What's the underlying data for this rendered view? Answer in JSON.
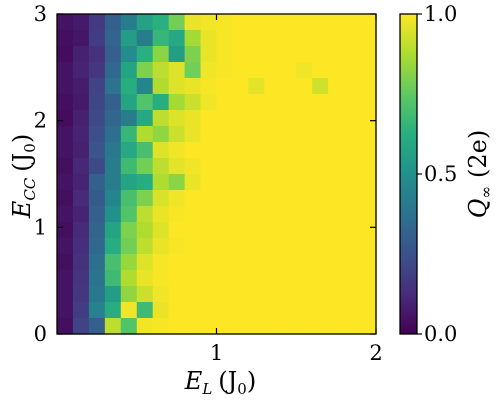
{
  "chart_data": {
    "type": "heatmap",
    "xlabel": {
      "main": "E",
      "sub": "L",
      "unit": "(J",
      "unit_sub": "0",
      "unit_close": ")"
    },
    "ylabel": {
      "main": "E",
      "sub": "CC",
      "unit": "(J",
      "unit_sub": "0",
      "unit_close": ")"
    },
    "colorbar_label": {
      "main": "Q",
      "sub": "∞",
      "unit": "(2e)"
    },
    "xlim": [
      0,
      2
    ],
    "ylim": [
      0,
      3
    ],
    "clim": [
      0,
      1
    ],
    "colormap": "viridis",
    "x_ticks": [
      1,
      2
    ],
    "x_tick_labels": [
      "1",
      "2"
    ],
    "y_ticks": [
      0,
      1,
      2,
      3
    ],
    "y_tick_labels": [
      "0",
      "1",
      "2",
      "3"
    ],
    "colorbar_ticks": [
      0,
      0.5,
      1
    ],
    "colorbar_tick_labels": [
      "0.0",
      "0.5",
      "1.0"
    ],
    "x_start": 0.0,
    "x_end": 2.0,
    "n_cols": 20,
    "n_rows": 20,
    "values_row_order": "top_to_bottom",
    "values": [
      [
        0.05,
        0.07,
        0.17,
        0.3,
        0.42,
        0.57,
        0.63,
        0.78,
        0.97,
        0.98,
        0.99,
        1,
        1,
        1,
        1,
        1,
        1,
        1,
        1,
        1
      ],
      [
        0.04,
        0.06,
        0.18,
        0.32,
        0.55,
        0.42,
        0.66,
        0.6,
        0.86,
        0.97,
        0.99,
        1,
        1,
        1,
        1,
        1,
        1,
        1,
        1,
        1
      ],
      [
        0.03,
        0.09,
        0.14,
        0.3,
        0.48,
        0.63,
        0.82,
        0.55,
        0.8,
        0.97,
        0.99,
        1,
        1,
        1,
        1,
        1,
        1,
        1,
        1,
        1
      ],
      [
        0.05,
        0.1,
        0.16,
        0.34,
        0.58,
        0.8,
        0.9,
        0.95,
        0.78,
        0.98,
        0.99,
        1,
        1,
        1,
        1,
        0.98,
        1,
        1,
        1,
        1
      ],
      [
        0.05,
        0.08,
        0.2,
        0.38,
        0.62,
        0.45,
        0.88,
        0.95,
        0.97,
        0.99,
        1,
        1,
        0.96,
        1,
        1,
        1,
        0.93,
        1,
        1,
        1
      ],
      [
        0.04,
        0.07,
        0.21,
        0.3,
        0.58,
        0.72,
        0.62,
        0.86,
        0.92,
        0.98,
        1,
        1,
        1,
        1,
        1,
        1,
        1,
        1,
        1,
        1
      ],
      [
        0.03,
        0.09,
        0.22,
        0.33,
        0.42,
        0.6,
        0.9,
        0.95,
        0.97,
        1,
        1,
        1,
        1,
        1,
        1,
        1,
        1,
        1,
        1,
        1
      ],
      [
        0.05,
        0.1,
        0.24,
        0.36,
        0.66,
        0.88,
        0.83,
        0.92,
        0.97,
        1,
        1,
        1,
        1,
        1,
        1,
        1,
        1,
        1,
        1,
        1
      ],
      [
        0.05,
        0.09,
        0.26,
        0.4,
        0.6,
        0.7,
        0.95,
        0.98,
        1,
        1,
        1,
        1,
        1,
        1,
        1,
        1,
        1,
        1,
        1,
        1
      ],
      [
        0.04,
        0.11,
        0.22,
        0.42,
        0.68,
        0.78,
        0.9,
        0.96,
        0.98,
        1,
        1,
        1,
        1,
        1,
        1,
        1,
        1,
        1,
        1,
        1
      ],
      [
        0.05,
        0.1,
        0.3,
        0.42,
        0.58,
        0.62,
        0.88,
        0.82,
        0.97,
        1,
        1,
        1,
        1,
        1,
        1,
        1,
        1,
        1,
        1,
        1
      ],
      [
        0.04,
        0.12,
        0.28,
        0.45,
        0.7,
        0.8,
        0.94,
        0.98,
        1,
        1,
        1,
        1,
        1,
        1,
        1,
        1,
        1,
        1,
        1,
        1
      ],
      [
        0.05,
        0.1,
        0.3,
        0.5,
        0.72,
        0.9,
        0.97,
        0.99,
        1,
        1,
        1,
        1,
        1,
        1,
        1,
        1,
        1,
        1,
        1,
        1
      ],
      [
        0.04,
        0.12,
        0.32,
        0.58,
        0.8,
        0.88,
        0.95,
        1,
        1,
        1,
        1,
        1,
        1,
        1,
        1,
        1,
        1,
        1,
        1,
        1
      ],
      [
        0.05,
        0.13,
        0.34,
        0.62,
        0.78,
        0.9,
        0.97,
        0.99,
        1,
        1,
        1,
        1,
        1,
        1,
        1,
        1,
        1,
        1,
        1,
        1
      ],
      [
        0.04,
        0.14,
        0.36,
        0.7,
        0.84,
        0.95,
        0.99,
        1,
        1,
        1,
        1,
        1,
        1,
        1,
        1,
        1,
        1,
        1,
        1,
        1
      ],
      [
        0.05,
        0.15,
        0.38,
        0.68,
        0.88,
        0.97,
        0.99,
        1,
        1,
        1,
        1,
        1,
        1,
        1,
        1,
        1,
        1,
        1,
        1,
        1
      ],
      [
        0.05,
        0.16,
        0.4,
        0.55,
        0.83,
        0.92,
        0.98,
        1,
        1,
        1,
        1,
        1,
        1,
        1,
        1,
        1,
        1,
        1,
        1,
        1
      ],
      [
        0.05,
        0.18,
        0.44,
        0.62,
        0.98,
        0.68,
        0.97,
        1,
        1,
        1,
        1,
        1,
        1,
        1,
        1,
        1,
        1,
        1,
        1,
        1
      ],
      [
        0.04,
        0.2,
        0.3,
        0.9,
        0.72,
        0.98,
        0.99,
        1,
        1,
        1,
        1,
        1,
        1,
        1,
        1,
        1,
        1,
        1,
        1,
        1
      ]
    ]
  }
}
